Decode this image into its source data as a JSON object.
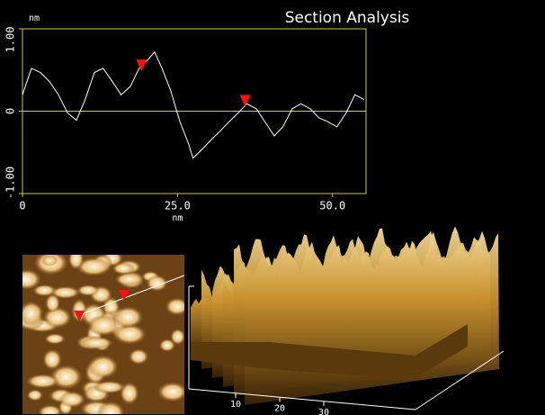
{
  "chart_data": {
    "type": "line",
    "title": "Section Analysis",
    "x_label": "nm",
    "y_label": "nm",
    "xlim": [
      0,
      55.4
    ],
    "ylim": [
      -1,
      1
    ],
    "xticks": [
      0,
      {
        "value": 25,
        "label": "25.0"
      },
      {
        "value": 50,
        "label": "50.0"
      }
    ],
    "yticks": [
      {
        "value": -1,
        "label": "-1.00"
      },
      0,
      {
        "value": 1,
        "label": "1.00"
      }
    ],
    "frame_color": "#c8c850",
    "x": [
      0,
      1.45,
      2.9,
      4.35,
      5.8,
      7.25,
      8.7,
      10.1,
      11.6,
      13.0,
      14.5,
      15.9,
      17.4,
      18.8,
      20.3,
      21.3,
      22.5,
      23.9,
      25.4,
      26.8,
      27.5,
      29.0,
      30.4,
      31.9,
      33.3,
      34.8,
      36.2,
      37.7,
      39.1,
      40.6,
      42.0,
      43.5,
      44.9,
      46.4,
      47.8,
      49.3,
      50.7,
      52.2,
      53.6,
      55.1
    ],
    "series": [
      {
        "color": "#ffffff",
        "values": [
          0.2,
          0.52,
          0.47,
          0.36,
          0.2,
          -0.02,
          -0.11,
          0.14,
          0.47,
          0.52,
          0.36,
          0.2,
          0.3,
          0.52,
          0.63,
          0.72,
          0.52,
          0.25,
          -0.13,
          -0.4,
          -0.57,
          -0.46,
          -0.35,
          -0.24,
          -0.13,
          -0.02,
          0.09,
          0.03,
          -0.13,
          -0.3,
          -0.19,
          0.03,
          0.09,
          0.03,
          -0.08,
          -0.13,
          -0.19,
          -0.02,
          0.2,
          0.14
        ]
      }
    ],
    "markers": {
      "color": "#ff1010",
      "x": [
        19.2,
        35.9
      ],
      "y": [
        0.55,
        0.12
      ]
    }
  },
  "surface_plot": {
    "xticks": [
      10,
      20,
      30
    ]
  }
}
